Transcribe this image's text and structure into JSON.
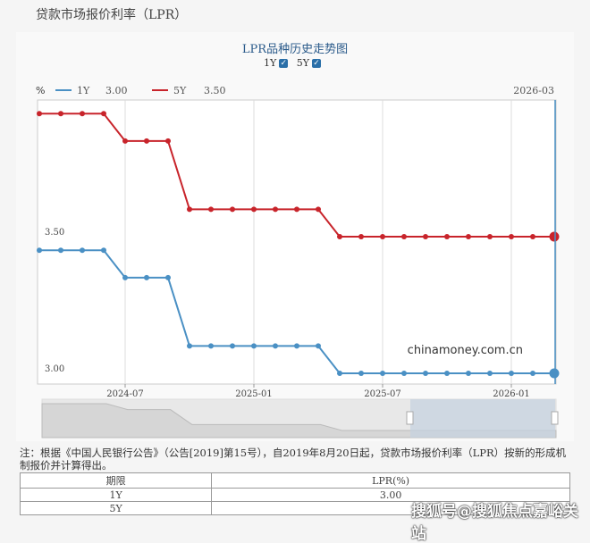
{
  "page_title": "贷款市场报价利率（LPR）",
  "chart_title": "LPR品种历史走势图",
  "toggles": [
    {
      "label": "1Y",
      "checked": true
    },
    {
      "label": "5Y",
      "checked": true
    }
  ],
  "chart_data": {
    "type": "line",
    "title": "LPR品种历史走势图",
    "ylabel": "%",
    "x": [
      "2024-03",
      "2024-04",
      "2024-05",
      "2024-06",
      "2024-07",
      "2024-08",
      "2024-09",
      "2024-10",
      "2024-11",
      "2024-12",
      "2025-01",
      "2025-02",
      "2025-03",
      "2025-04",
      "2025-05",
      "2025-06",
      "2025-07",
      "2025-08",
      "2025-09",
      "2025-10",
      "2025-11",
      "2025-12",
      "2026-01",
      "2026-02",
      "2026-03"
    ],
    "xticks": [
      "2024-07",
      "2025-01",
      "2025-07",
      "2026-01"
    ],
    "yticks": [
      "3.50",
      "3.00"
    ],
    "ylim": [
      3.0,
      4.0
    ],
    "legend_placement": "top-left",
    "cursor_label": "2026-03",
    "series": [
      {
        "name": "1Y",
        "current": "3.00",
        "color": "#4a90c4",
        "values": [
          3.45,
          3.45,
          3.45,
          3.45,
          3.35,
          3.35,
          3.35,
          3.1,
          3.1,
          3.1,
          3.1,
          3.1,
          3.1,
          3.1,
          3.0,
          3.0,
          3.0,
          3.0,
          3.0,
          3.0,
          3.0,
          3.0,
          3.0,
          3.0,
          3.0
        ]
      },
      {
        "name": "5Y",
        "current": "3.50",
        "color": "#c8242b",
        "values": [
          3.95,
          3.95,
          3.95,
          3.95,
          3.85,
          3.85,
          3.85,
          3.6,
          3.6,
          3.6,
          3.6,
          3.6,
          3.6,
          3.6,
          3.5,
          3.5,
          3.5,
          3.5,
          3.5,
          3.5,
          3.5,
          3.5,
          3.5,
          3.5,
          3.5
        ]
      }
    ],
    "watermark": "chinamoney.com.cn"
  },
  "note": "注：根据《中国人民银行公告》（公告[2019]第15号），自2019年8月20日起，贷款市场报价利率（LPR）按新的形成机制报价并计算得出。",
  "table": {
    "headers": [
      "期限",
      "LPR(%)"
    ],
    "rows": [
      [
        "1Y",
        "3.00"
      ],
      [
        "5Y",
        ""
      ]
    ]
  },
  "overlay_watermark": "搜狐号@搜狐焦点嘉峪关站"
}
